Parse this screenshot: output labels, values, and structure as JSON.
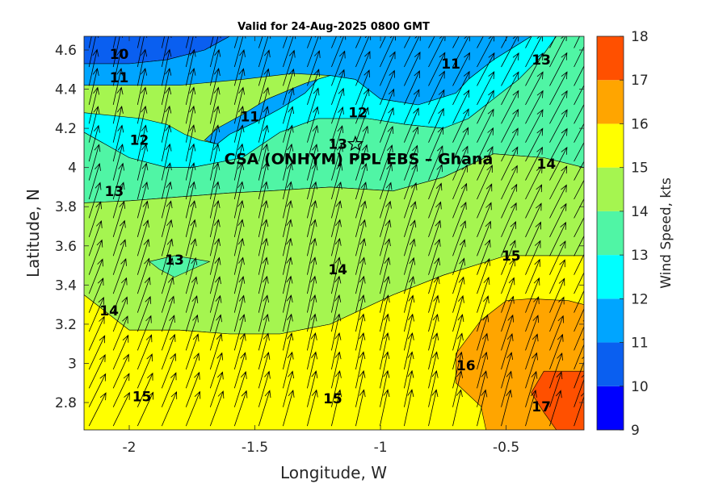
{
  "chart_data": {
    "type": "contourf-quiver",
    "title": "Valid for 24-Aug-2025 0800 GMT",
    "xlabel": "Longitude, W",
    "ylabel": "Latitude, N",
    "xlim": [
      -2.18,
      -0.19
    ],
    "ylim": [
      2.66,
      4.67
    ],
    "xticks": [
      -2,
      -1.5,
      -1,
      -0.5
    ],
    "xtick_labels": [
      "-2",
      "-1.5",
      "-1",
      "-0.5"
    ],
    "yticks": [
      2.8,
      3.0,
      3.2,
      3.4,
      3.6,
      3.8,
      4.0,
      4.2,
      4.4,
      4.6
    ],
    "ytick_labels": [
      "2.8",
      "3",
      "3.2",
      "3.4",
      "3.6",
      "3.8",
      "4",
      "4.2",
      "4.4",
      "4.6"
    ],
    "colorbar": {
      "label": "Wind Speed, kts",
      "levels": [
        9,
        10,
        11,
        12,
        13,
        14,
        15,
        16,
        17,
        18
      ],
      "tick_labels": [
        "9",
        "10",
        "11",
        "12",
        "13",
        "14",
        "15",
        "16",
        "17",
        "18"
      ],
      "colors": [
        "#0000ff",
        "#0a5ff0",
        "#00a5ff",
        "#00ffff",
        "#50f5a5",
        "#a5f550",
        "#ffff00",
        "#ffa500",
        "#ff5000"
      ]
    },
    "site": {
      "label": "CSA (ONHYM) PPL EBS  – Ghana",
      "lon": -1.1,
      "lat": 4.12
    },
    "wind_direction": "south-southwest (arrows point north-northeast)",
    "regions": [
      {
        "level": 10,
        "points": [
          [
            -2.18,
            4.67
          ],
          [
            -1.6,
            4.67
          ],
          [
            -1.7,
            4.6
          ],
          [
            -1.85,
            4.55
          ],
          [
            -2.0,
            4.53
          ],
          [
            -2.18,
            4.53
          ]
        ]
      },
      {
        "level": 11,
        "points": [
          [
            -2.18,
            4.53
          ],
          [
            -2.0,
            4.53
          ],
          [
            -1.85,
            4.55
          ],
          [
            -1.7,
            4.6
          ],
          [
            -1.6,
            4.67
          ],
          [
            -0.4,
            4.67
          ],
          [
            -0.55,
            4.55
          ],
          [
            -0.65,
            4.45
          ],
          [
            -0.7,
            4.38
          ],
          [
            -0.85,
            4.32
          ],
          [
            -1.0,
            4.35
          ],
          [
            -1.1,
            4.45
          ],
          [
            -1.2,
            4.47
          ],
          [
            -1.3,
            4.43
          ],
          [
            -1.45,
            4.35
          ],
          [
            -1.55,
            4.27
          ],
          [
            -1.65,
            4.2
          ],
          [
            -1.7,
            4.14
          ],
          [
            -1.65,
            4.12
          ],
          [
            -1.6,
            4.17
          ],
          [
            -1.5,
            4.23
          ],
          [
            -1.4,
            4.3
          ],
          [
            -1.3,
            4.38
          ],
          [
            -1.25,
            4.45
          ],
          [
            -1.2,
            4.47
          ],
          [
            -1.35,
            4.48
          ],
          [
            -1.55,
            4.45
          ],
          [
            -1.8,
            4.42
          ],
          [
            -2.0,
            4.42
          ],
          [
            -2.18,
            4.42
          ]
        ]
      },
      {
        "level": 12,
        "points": [
          [
            -2.18,
            4.28
          ],
          [
            -1.95,
            4.25
          ],
          [
            -1.85,
            4.22
          ],
          [
            -1.78,
            4.17
          ],
          [
            -1.72,
            4.14
          ],
          [
            -1.65,
            4.12
          ],
          [
            -1.6,
            4.17
          ],
          [
            -1.5,
            4.23
          ],
          [
            -1.4,
            4.3
          ],
          [
            -1.3,
            4.38
          ],
          [
            -1.25,
            4.45
          ],
          [
            -1.2,
            4.47
          ],
          [
            -1.1,
            4.45
          ],
          [
            -1.0,
            4.35
          ],
          [
            -0.85,
            4.32
          ],
          [
            -0.7,
            4.38
          ],
          [
            -0.65,
            4.45
          ],
          [
            -0.55,
            4.55
          ],
          [
            -0.4,
            4.67
          ],
          [
            -0.3,
            4.67
          ],
          [
            -0.35,
            4.58
          ],
          [
            -0.45,
            4.45
          ],
          [
            -0.55,
            4.35
          ],
          [
            -0.65,
            4.25
          ],
          [
            -0.75,
            4.2
          ],
          [
            -0.9,
            4.22
          ],
          [
            -1.05,
            4.25
          ],
          [
            -1.25,
            4.25
          ],
          [
            -1.4,
            4.18
          ],
          [
            -1.55,
            4.05
          ],
          [
            -1.75,
            4.0
          ],
          [
            -1.85,
            4.0
          ],
          [
            -2.0,
            4.05
          ],
          [
            -2.18,
            4.18
          ]
        ]
      },
      {
        "level": 13,
        "points": [
          [
            -2.18,
            4.18
          ],
          [
            -2.0,
            4.05
          ],
          [
            -1.85,
            4.0
          ],
          [
            -1.75,
            4.0
          ],
          [
            -1.55,
            4.05
          ],
          [
            -1.4,
            4.18
          ],
          [
            -1.25,
            4.25
          ],
          [
            -1.05,
            4.25
          ],
          [
            -0.9,
            4.22
          ],
          [
            -0.75,
            4.2
          ],
          [
            -0.65,
            4.25
          ],
          [
            -0.55,
            4.35
          ],
          [
            -0.45,
            4.45
          ],
          [
            -0.35,
            4.58
          ],
          [
            -0.3,
            4.67
          ],
          [
            -0.19,
            4.67
          ],
          [
            -0.19,
            4.0
          ],
          [
            -0.35,
            4.05
          ],
          [
            -0.55,
            4.07
          ],
          [
            -0.75,
            3.95
          ],
          [
            -0.95,
            3.88
          ],
          [
            -1.2,
            3.9
          ],
          [
            -1.45,
            3.88
          ],
          [
            -1.6,
            3.87
          ],
          [
            -1.8,
            3.85
          ],
          [
            -2.0,
            3.83
          ],
          [
            -2.18,
            3.82
          ]
        ]
      },
      {
        "level": 14,
        "points": [
          [
            -2.18,
            3.82
          ],
          [
            -2.0,
            3.83
          ],
          [
            -1.8,
            3.85
          ],
          [
            -1.6,
            3.87
          ],
          [
            -1.45,
            3.88
          ],
          [
            -1.2,
            3.9
          ],
          [
            -0.95,
            3.88
          ],
          [
            -0.75,
            3.95
          ],
          [
            -0.55,
            4.07
          ],
          [
            -0.35,
            4.05
          ],
          [
            -0.19,
            4.0
          ],
          [
            -0.19,
            3.55
          ],
          [
            -0.5,
            3.55
          ],
          [
            -0.75,
            3.45
          ],
          [
            -0.95,
            3.35
          ],
          [
            -1.2,
            3.2
          ],
          [
            -1.4,
            3.15
          ],
          [
            -1.6,
            3.15
          ],
          [
            -1.8,
            3.17
          ],
          [
            -2.0,
            3.17
          ],
          [
            -2.18,
            3.35
          ]
        ]
      },
      {
        "level": 13,
        "points": [
          [
            -1.92,
            3.52
          ],
          [
            -1.82,
            3.55
          ],
          [
            -1.68,
            3.52
          ],
          [
            -1.82,
            3.44
          ],
          [
            -1.88,
            3.48
          ]
        ]
      },
      {
        "level": 15,
        "points": [
          [
            -2.18,
            3.35
          ],
          [
            -2.0,
            3.17
          ],
          [
            -1.8,
            3.17
          ],
          [
            -1.6,
            3.15
          ],
          [
            -1.4,
            3.15
          ],
          [
            -1.2,
            3.2
          ],
          [
            -0.95,
            3.35
          ],
          [
            -0.75,
            3.45
          ],
          [
            -0.5,
            3.55
          ],
          [
            -0.19,
            3.55
          ],
          [
            -0.19,
            2.66
          ],
          [
            -2.18,
            2.66
          ]
        ]
      },
      {
        "level": 16,
        "points": [
          [
            -0.19,
            3.3
          ],
          [
            -0.25,
            3.32
          ],
          [
            -0.4,
            3.33
          ],
          [
            -0.5,
            3.32
          ],
          [
            -0.6,
            3.22
          ],
          [
            -0.7,
            3.05
          ],
          [
            -0.7,
            2.9
          ],
          [
            -0.6,
            2.78
          ],
          [
            -0.58,
            2.66
          ],
          [
            -0.19,
            2.66
          ]
        ]
      },
      {
        "level": 17,
        "points": [
          [
            -0.19,
            2.96
          ],
          [
            -0.35,
            2.96
          ],
          [
            -0.4,
            2.85
          ],
          [
            -0.35,
            2.75
          ],
          [
            -0.3,
            2.66
          ],
          [
            -0.19,
            2.66
          ]
        ]
      }
    ],
    "contour_labels": [
      {
        "text": "10",
        "lon": -2.04,
        "lat": 4.58
      },
      {
        "text": "11",
        "lon": -2.04,
        "lat": 4.46
      },
      {
        "text": "11",
        "lon": -1.52,
        "lat": 4.26
      },
      {
        "text": "11",
        "lon": -0.72,
        "lat": 4.53
      },
      {
        "text": "12",
        "lon": -1.96,
        "lat": 4.14
      },
      {
        "text": "12",
        "lon": -1.09,
        "lat": 4.28
      },
      {
        "text": "13",
        "lon": -1.17,
        "lat": 4.12
      },
      {
        "text": "13",
        "lon": -0.36,
        "lat": 4.55
      },
      {
        "text": "13",
        "lon": -2.06,
        "lat": 3.88
      },
      {
        "text": "13",
        "lon": -1.82,
        "lat": 3.53
      },
      {
        "text": "14",
        "lon": -0.34,
        "lat": 4.02
      },
      {
        "text": "14",
        "lon": -1.17,
        "lat": 3.48
      },
      {
        "text": "14",
        "lon": -2.08,
        "lat": 3.27
      },
      {
        "text": "15",
        "lon": -0.48,
        "lat": 3.55
      },
      {
        "text": "15",
        "lon": -1.95,
        "lat": 2.83
      },
      {
        "text": "15",
        "lon": -1.19,
        "lat": 2.82
      },
      {
        "text": "16",
        "lon": -0.66,
        "lat": 2.99
      },
      {
        "text": "17",
        "lon": -0.36,
        "lat": 2.78
      }
    ]
  }
}
